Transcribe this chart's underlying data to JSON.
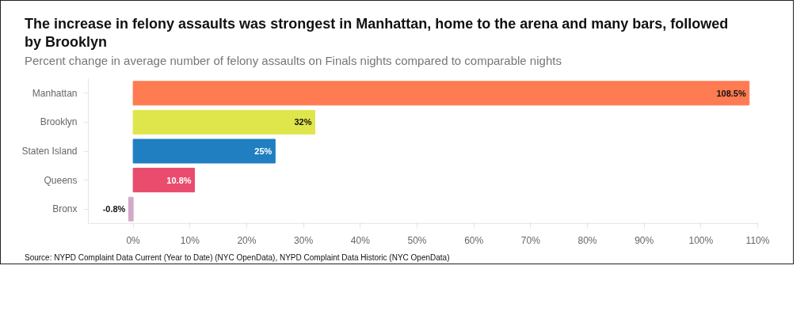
{
  "chart_data": {
    "type": "bar",
    "orientation": "horizontal",
    "title": "The increase in felony assaults was strongest in Manhattan, home to the arena and many bars, followed by Brooklyn",
    "subtitle": "Percent change in average number of felony assaults on Finals nights compared to comparable nights",
    "categories": [
      "Manhattan",
      "Brooklyn",
      "Staten Island",
      "Queens",
      "Bronx"
    ],
    "values": [
      108.5,
      32,
      25,
      10.8,
      -0.8
    ],
    "colors": [
      "#ff7b52",
      "#dfe64c",
      "#1f7fc1",
      "#ea4c6e",
      "#d3a8c9"
    ],
    "value_labels": [
      "108.5%",
      "32%",
      "25%",
      "10.8%",
      "-0.8%"
    ],
    "xlim": [
      -7.9,
      110
    ],
    "xticks": [
      {
        "value": 0,
        "label": "0%"
      },
      {
        "value": 10,
        "label": "10%"
      },
      {
        "value": 20,
        "label": "20%"
      },
      {
        "value": 30,
        "label": "30%"
      },
      {
        "value": 40,
        "label": "40%"
      },
      {
        "value": 50,
        "label": "50%"
      },
      {
        "value": 60,
        "label": "60%"
      },
      {
        "value": 70,
        "label": "70%"
      },
      {
        "value": 80,
        "label": "80%"
      },
      {
        "value": 90,
        "label": "90%"
      },
      {
        "value": 100,
        "label": "100%"
      },
      {
        "value": 110,
        "label": "110%"
      }
    ],
    "grid": false,
    "annotations": [
      "Source: NYPD Complaint Data Current (Year to Date) (NYC OpenData), NYPD Complaint Data Historic (NYC OpenData)"
    ]
  }
}
